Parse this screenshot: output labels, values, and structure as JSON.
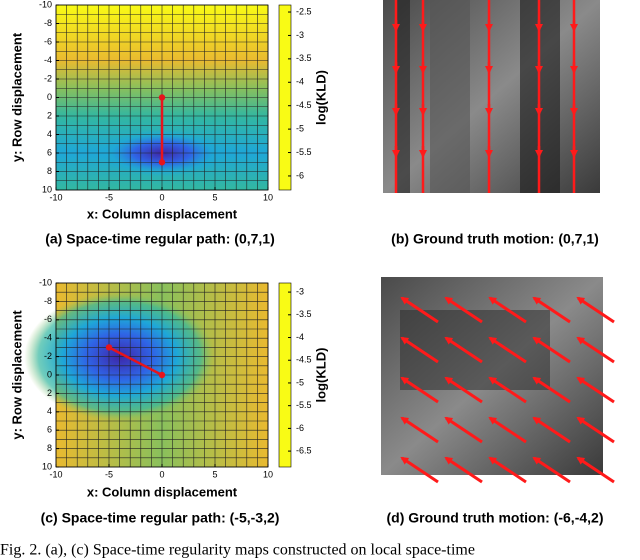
{
  "colormap": [
    "#3e26a8",
    "#2f64e6",
    "#1ea7d8",
    "#33b7a0",
    "#89c05c",
    "#e9ba30",
    "#f9fb15"
  ],
  "panels": [
    {
      "type": "heatmap",
      "xlabel": "x: Column displacement",
      "ylabel": "y: Row displacement",
      "xlim": [
        -10,
        10
      ],
      "ylim": [
        -10,
        10
      ],
      "xticks": [
        -10,
        -5,
        0,
        5,
        10
      ],
      "yticks": [
        -10,
        -8,
        -6,
        -4,
        -2,
        0,
        2,
        4,
        6,
        8,
        10
      ],
      "colorbar": {
        "label": "log(KLD)",
        "lim": [
          -6.3,
          -2.35
        ],
        "ticks": [
          -2.5,
          -3,
          -3.5,
          -4,
          -4.5,
          -5,
          -5.5,
          -6
        ]
      },
      "path": {
        "start": [
          0,
          0
        ],
        "end": [
          0,
          7
        ]
      },
      "caption": "(a) Space-time regular path: (0,7,1)"
    },
    {
      "type": "image",
      "caption": "(b) Ground truth motion: (0,7,1)"
    },
    {
      "type": "heatmap",
      "xlabel": "x: Column displacement",
      "ylabel": "y: Row displacement",
      "xlim": [
        -10,
        10
      ],
      "ylim": [
        -10,
        10
      ],
      "xticks": [
        -10,
        -5,
        0,
        5,
        10
      ],
      "yticks": [
        -10,
        -8,
        -6,
        -4,
        -2,
        0,
        2,
        4,
        6,
        8,
        10
      ],
      "colorbar": {
        "label": "log(KLD)",
        "lim": [
          -6.85,
          -2.8
        ],
        "ticks": [
          -3,
          -3.5,
          -4,
          -4.5,
          -5,
          -5.5,
          -6,
          -6.5
        ]
      },
      "path": {
        "start": [
          0,
          0
        ],
        "end": [
          -5,
          -3
        ]
      },
      "caption": "(c) Space-time regular path: (-5,-3,2)"
    },
    {
      "type": "image",
      "caption": "(d) Ground truth motion: (-6,-4,2)"
    }
  ],
  "figure_caption": "Fig. 2. (a), (c) Space-time regularity maps constructed on local space-time"
}
